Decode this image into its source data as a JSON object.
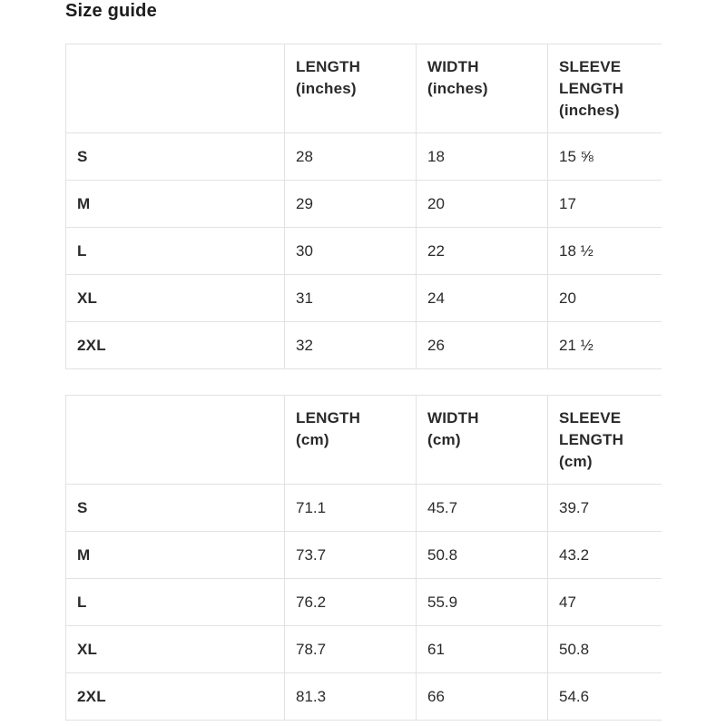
{
  "page": {
    "title": "Size guide"
  },
  "colors": {
    "background": "#ffffff",
    "border": "#e2e2e2",
    "text": "#2a2a2a"
  },
  "tables": [
    {
      "unit": "inches",
      "columns": [
        "",
        "LENGTH\n(inches)",
        "WIDTH\n(inches)",
        "SLEEVE\nLENGTH\n(inches)"
      ],
      "rows": [
        {
          "size": "S",
          "values": [
            "28",
            "18",
            "15 ⅝"
          ]
        },
        {
          "size": "M",
          "values": [
            "29",
            "20",
            "17"
          ]
        },
        {
          "size": "L",
          "values": [
            "30",
            "22",
            "18 ½"
          ]
        },
        {
          "size": "XL",
          "values": [
            "31",
            "24",
            "20"
          ]
        },
        {
          "size": "2XL",
          "values": [
            "32",
            "26",
            "21 ½"
          ]
        }
      ]
    },
    {
      "unit": "cm",
      "columns": [
        "",
        "LENGTH\n(cm)",
        "WIDTH\n(cm)",
        "SLEEVE\nLENGTH\n(cm)"
      ],
      "rows": [
        {
          "size": "S",
          "values": [
            "71.1",
            "45.7",
            "39.7"
          ]
        },
        {
          "size": "M",
          "values": [
            "73.7",
            "50.8",
            "43.2"
          ]
        },
        {
          "size": "L",
          "values": [
            "76.2",
            "55.9",
            "47"
          ]
        },
        {
          "size": "XL",
          "values": [
            "78.7",
            "61",
            "50.8"
          ]
        },
        {
          "size": "2XL",
          "values": [
            "81.3",
            "66",
            "54.6"
          ]
        }
      ]
    }
  ]
}
